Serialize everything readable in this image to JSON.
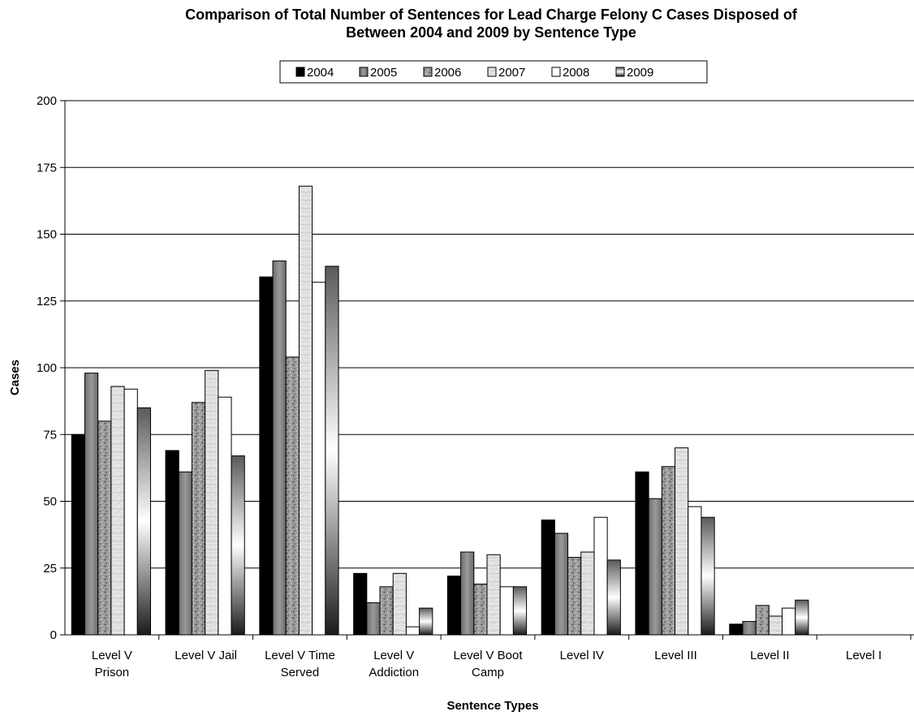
{
  "chart_data": {
    "type": "bar",
    "title_lines": [
      "Comparison of Total Number of Sentences for Lead Charge Felony C Cases Disposed of",
      "Between 2004 and 2009 by Sentence Type"
    ],
    "xlabel": "Sentence Types",
    "ylabel": "Cases",
    "ylim": [
      0,
      200
    ],
    "yticks": [
      0,
      25,
      50,
      75,
      100,
      125,
      150,
      175,
      200
    ],
    "grid": true,
    "legend_position": "top",
    "categories": [
      [
        "Level V",
        "Prison"
      ],
      [
        "Level V Jail"
      ],
      [
        "Level V Time",
        "Served"
      ],
      [
        "Level V",
        "Addiction"
      ],
      [
        "Level V Boot",
        "Camp"
      ],
      [
        "Level IV"
      ],
      [
        "Level III"
      ],
      [
        "Level II"
      ],
      [
        "Level I"
      ]
    ],
    "series": [
      {
        "name": "2004",
        "pattern": "solid-black",
        "values": [
          75,
          69,
          134,
          23,
          22,
          43,
          61,
          4,
          0
        ]
      },
      {
        "name": "2005",
        "pattern": "solid-gray",
        "values": [
          98,
          61,
          140,
          12,
          31,
          38,
          51,
          5,
          0
        ]
      },
      {
        "name": "2006",
        "pattern": "dark-granite",
        "values": [
          80,
          87,
          104,
          18,
          19,
          29,
          63,
          11,
          0
        ]
      },
      {
        "name": "2007",
        "pattern": "light-marble",
        "values": [
          93,
          99,
          168,
          23,
          30,
          31,
          70,
          7,
          0
        ]
      },
      {
        "name": "2008",
        "pattern": "white",
        "values": [
          92,
          89,
          132,
          3,
          18,
          44,
          48,
          10,
          0
        ]
      },
      {
        "name": "2009",
        "pattern": "gradient",
        "values": [
          85,
          67,
          138,
          10,
          18,
          28,
          44,
          13,
          0
        ]
      }
    ]
  }
}
